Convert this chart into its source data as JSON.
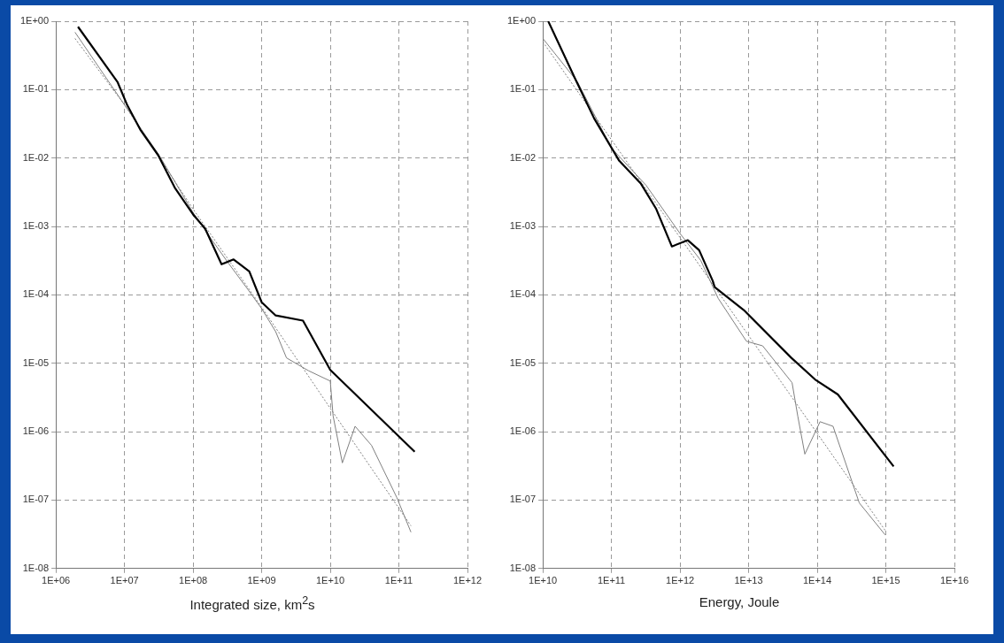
{
  "chart_data": [
    {
      "type": "line",
      "xlabel": "Integrated size, km$^{2}$s",
      "log": "xy",
      "grid": true,
      "legend": false,
      "xlim": [
        1000000.0,
        1000000000000.0
      ],
      "ylim": [
        1e-08,
        1
      ],
      "xticks": [
        {
          "value": 1000000.0,
          "label": "1E+06"
        },
        {
          "value": 10000000.0,
          "label": "1E+07"
        },
        {
          "value": 100000000.0,
          "label": "1E+08"
        },
        {
          "value": 1000000000.0,
          "label": "1E+09"
        },
        {
          "value": 10000000000.0,
          "label": "1E+10"
        },
        {
          "value": 100000000000.0,
          "label": "1E+11"
        },
        {
          "value": 1000000000000.0,
          "label": "1E+12"
        }
      ],
      "yticks": [
        {
          "value": 1e-08,
          "label": "1E-08"
        },
        {
          "value": 1e-07,
          "label": "1E-07"
        },
        {
          "value": 1e-06,
          "label": "1E-06"
        },
        {
          "value": 1e-05,
          "label": "1E-05"
        },
        {
          "value": 0.0001,
          "label": "1E-04"
        },
        {
          "value": 0.001,
          "label": "1E-03"
        },
        {
          "value": 0.01,
          "label": "1E-02"
        },
        {
          "value": 0.1,
          "label": "1E-01"
        },
        {
          "value": 1,
          "label": "1E+00"
        }
      ],
      "series": [
        {
          "color": "#000000",
          "line_style": "solid",
          "x": [
            2100000.0,
            7900000.0,
            11000000.0,
            17000000.0,
            31000000.0,
            54000000.0,
            100000000.0,
            150000000.0,
            260000000.0,
            390000000.0,
            660000000.0,
            1000000000.0,
            1600000000.0,
            4000000000.0,
            10000000000.0,
            170000000000.0
          ],
          "values": [
            0.83,
            0.13,
            0.059,
            0.026,
            0.011,
            0.0037,
            0.0015,
            0.00093,
            0.00028,
            0.00033,
            0.00022,
            7.8e-05,
            5e-05,
            4.2e-05,
            8e-06,
            5.1e-07
          ]
        },
        {
          "color": "#808080",
          "line_style": "solid",
          "x": [
            1900000.0,
            10000000.0,
            32000000.0,
            100000000.0,
            160000000.0,
            320000000.0,
            630000000.0,
            1000000000.0,
            1600000000.0,
            2300000000.0,
            4800000000.0,
            10000000000.0,
            11000000000.0,
            15000000000.0,
            23000000000.0,
            40000000000.0,
            93000000000.0,
            150000000000.0
          ],
          "values": [
            0.69,
            0.06,
            0.011,
            0.0016,
            0.0008,
            0.0003,
            0.00012,
            6.3e-05,
            2.9e-05,
            1.2e-05,
            7.8e-06,
            5.5e-06,
            1.7e-06,
            3.5e-07,
            1.2e-06,
            6.3e-07,
            1.1e-07,
            3.4e-08
          ]
        },
        {
          "color": "#808080",
          "line_style": "dotted",
          "x": [
            1900000.0,
            10000000.0,
            100000000.0,
            1000000000.0,
            10000000000.0,
            150000000000.0
          ],
          "values": [
            0.56,
            0.06,
            0.0018,
            6.6e-05,
            2.2e-06,
            4.2e-08
          ]
        }
      ]
    },
    {
      "type": "line",
      "xlabel": "Energy, Joule",
      "log": "xy",
      "grid": true,
      "legend": false,
      "xlim": [
        10000000000.0,
        1e+16
      ],
      "ylim": [
        1e-08,
        1
      ],
      "xticks": [
        {
          "value": 10000000000.0,
          "label": "1E+10"
        },
        {
          "value": 100000000000.0,
          "label": "1E+11"
        },
        {
          "value": 1000000000000.0,
          "label": "1E+12"
        },
        {
          "value": 10000000000000.0,
          "label": "1E+13"
        },
        {
          "value": 100000000000000.0,
          "label": "1E+14"
        },
        {
          "value": 1000000000000000.0,
          "label": "1E+15"
        },
        {
          "value": 1e+16,
          "label": "1E+16"
        }
      ],
      "yticks": [
        {
          "value": 1e-08,
          "label": "1E-08"
        },
        {
          "value": 1e-07,
          "label": "1E-07"
        },
        {
          "value": 1e-06,
          "label": "1E-06"
        },
        {
          "value": 1e-05,
          "label": "1E-05"
        },
        {
          "value": 0.0001,
          "label": "1E-04"
        },
        {
          "value": 0.001,
          "label": "1E-03"
        },
        {
          "value": 0.01,
          "label": "1E-02"
        },
        {
          "value": 0.1,
          "label": "1E-01"
        },
        {
          "value": 1,
          "label": "1E+00"
        }
      ],
      "series": [
        {
          "color": "#000000",
          "line_style": "solid",
          "x": [
            12000000000.0,
            30000000000.0,
            56000000000.0,
            130000000000.0,
            270000000000.0,
            450000000000.0,
            760000000000.0,
            1300000000000.0,
            1900000000000.0,
            3000000000000.0,
            3200000000000.0,
            8500000000000.0,
            42000000000000.0,
            93000000000000.0,
            200000000000000.0,
            1300000000000000.0
          ],
          "values": [
            1.0,
            0.14,
            0.038,
            0.0091,
            0.0042,
            0.0018,
            0.00051,
            0.00063,
            0.00045,
            0.00016,
            0.00013,
            6e-05,
            1.2e-05,
            5.8e-06,
            3.5e-06,
            3.1e-07
          ]
        },
        {
          "color": "#808080",
          "line_style": "solid",
          "x": [
            10000000000.0,
            32000000000.0,
            100000000000.0,
            320000000000.0,
            1000000000000.0,
            2000000000000.0,
            3600000000000.0,
            9300000000000.0,
            16000000000000.0,
            43000000000000.0,
            52000000000000.0,
            66000000000000.0,
            110000000000000.0,
            170000000000000.0,
            410000000000000.0,
            980000000000000.0
          ],
          "values": [
            0.56,
            0.13,
            0.014,
            0.004,
            0.00079,
            0.00032,
            8.9e-05,
            2.1e-05,
            1.8e-05,
            5.2e-06,
            1.7e-06,
            4.7e-07,
            1.4e-06,
            1.2e-06,
            9.1e-08,
            3.1e-08
          ]
        },
        {
          "color": "#808080",
          "line_style": "dotted",
          "x": [
            10000000000.0,
            980000000000000.0
          ],
          "values": [
            0.5,
            3.6e-08
          ]
        }
      ]
    }
  ]
}
